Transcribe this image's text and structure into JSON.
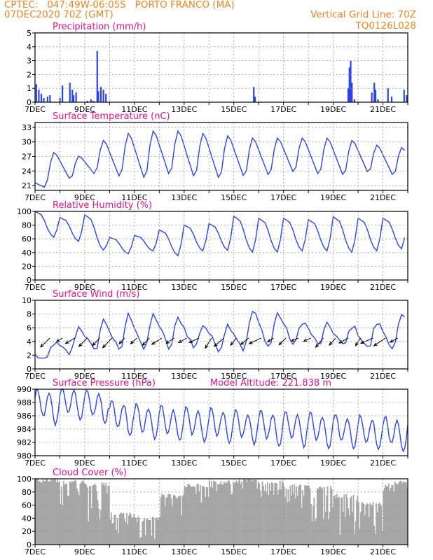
{
  "header": {
    "line1": "CPTEC:   047:49W-06:05S   PORTO FRANCO (MA)",
    "line2": "07DEC2020 70Z (GMT)",
    "grid_note": "Vertical Grid Line: 70Z",
    "code": "TQ0126L028"
  },
  "colors": {
    "header_text": "#e8862a",
    "title_text": "#e0158a",
    "line": "#2b45e8",
    "bars": "#2b45e8",
    "cloud_fill": "#a6a6a6",
    "wind_arrow": "#000000",
    "grid": "#9a9a9a"
  },
  "x_axis": {
    "start_label": "7DEC",
    "day_labels": [
      "7DEC",
      "9DEC",
      "11DEC",
      "13DEC",
      "15DEC",
      "17DEC",
      "19DEC",
      "21DEC"
    ],
    "num_days": 15
  },
  "chart_data": [
    {
      "type": "bar",
      "title": "Precipitation (mm/h)",
      "ylim": [
        0,
        5
      ],
      "yticks": [
        0,
        1,
        2,
        3,
        4,
        5
      ],
      "grid": true,
      "events": [
        {
          "day": 0.05,
          "value": 1.3
        },
        {
          "day": 0.15,
          "value": 0.9
        },
        {
          "day": 0.25,
          "value": 0.6
        },
        {
          "day": 0.35,
          "value": 0.3
        },
        {
          "day": 0.5,
          "value": 0.4
        },
        {
          "day": 0.6,
          "value": 0.5
        },
        {
          "day": 1.0,
          "value": 0.3
        },
        {
          "day": 1.1,
          "value": 1.2
        },
        {
          "day": 1.4,
          "value": 1.4
        },
        {
          "day": 1.5,
          "value": 0.9
        },
        {
          "day": 1.55,
          "value": 0.5
        },
        {
          "day": 1.65,
          "value": 0.7
        },
        {
          "day": 2.1,
          "value": 0.1
        },
        {
          "day": 2.25,
          "value": 0.2
        },
        {
          "day": 2.35,
          "value": 0.1
        },
        {
          "day": 2.5,
          "value": 3.7
        },
        {
          "day": 2.55,
          "value": 0.8
        },
        {
          "day": 2.65,
          "value": 1.1
        },
        {
          "day": 2.75,
          "value": 0.9
        },
        {
          "day": 2.85,
          "value": 0.6
        },
        {
          "day": 8.8,
          "value": 1.1
        },
        {
          "day": 8.85,
          "value": 0.4
        },
        {
          "day": 12.6,
          "value": 1.0
        },
        {
          "day": 12.65,
          "value": 2.5
        },
        {
          "day": 12.7,
          "value": 3.0
        },
        {
          "day": 12.75,
          "value": 1.4
        },
        {
          "day": 12.85,
          "value": 0.2
        },
        {
          "day": 13.55,
          "value": 0.7
        },
        {
          "day": 13.65,
          "value": 1.4
        },
        {
          "day": 13.7,
          "value": 0.9
        },
        {
          "day": 13.8,
          "value": 0.2
        },
        {
          "day": 14.2,
          "value": 1.0
        },
        {
          "day": 14.35,
          "value": 0.4
        },
        {
          "day": 14.85,
          "value": 0.9
        },
        {
          "day": 14.95,
          "value": 0.5
        }
      ]
    },
    {
      "type": "line",
      "title": "Surface Temperature (nC)",
      "ylim": [
        20,
        34
      ],
      "yticks": [
        21,
        24,
        27,
        30,
        33
      ],
      "grid": true,
      "daily_min": [
        20.5,
        21.8,
        23.0,
        22.0,
        21.5,
        22.3,
        21.8,
        21.5,
        22.0,
        22.3,
        23.0,
        22.5,
        22.3,
        23.0,
        22.5
      ],
      "daily_max": [
        28.0,
        27.2,
        30.5,
        32.0,
        32.5,
        32.5,
        32.0,
        31.5,
        31.0,
        31.0,
        31.0,
        31.0,
        30.5,
        29.5,
        29.0
      ]
    },
    {
      "type": "line",
      "title": "Relative Humidity (%)",
      "ylim": [
        0,
        100
      ],
      "yticks": [
        0,
        20,
        40,
        60,
        80,
        100
      ],
      "grid": true,
      "daily_min": [
        62,
        56,
        43,
        38,
        42,
        35,
        42,
        43,
        40,
        40,
        42,
        42,
        40,
        42,
        45
      ],
      "daily_max": [
        100,
        91,
        95,
        62,
        65,
        73,
        80,
        82,
        93,
        90,
        90,
        88,
        92,
        90,
        90
      ]
    },
    {
      "type": "line",
      "title": "Surface Wind (m/s)",
      "ylim": [
        0,
        10
      ],
      "yticks": [
        0,
        2,
        4,
        6,
        8,
        10
      ],
      "grid": true,
      "daily_min": [
        1.0,
        2.0,
        2.2,
        2.0,
        2.2,
        2.4,
        2.6,
        2.4,
        2.4,
        2.6,
        3.0,
        3.1,
        3.0,
        2.6,
        2.6
      ],
      "daily_max": [
        3.8,
        6.2,
        7.2,
        8.0,
        8.0,
        7.5,
        6.5,
        6.5,
        8.5,
        8.2,
        7.0,
        6.5,
        6.3,
        6.8,
        7.8
      ]
    },
    {
      "type": "line",
      "title": "Surface Pressure (hPa)",
      "annotation": "Model Altitude: 221.838  m",
      "ylim": [
        980,
        990
      ],
      "yticks": [
        980,
        982,
        984,
        986,
        988,
        990
      ],
      "grid": true,
      "mean_by_day": [
        987.5,
        988.0,
        987.5,
        985.8,
        985.2,
        985.0,
        984.8,
        984.6,
        984.4,
        984.2,
        984.2,
        984.0,
        983.8,
        983.6,
        983.4
      ]
    },
    {
      "type": "area",
      "title": "Cloud Cover (%)",
      "ylim": [
        0,
        100
      ],
      "yticks": [
        0,
        20,
        40,
        60,
        80,
        100
      ],
      "grid": true,
      "mean_by_day": [
        97,
        94,
        90,
        45,
        38,
        72,
        88,
        93,
        96,
        93,
        88,
        85,
        72,
        60,
        92
      ],
      "min_by_day": [
        92,
        60,
        35,
        12,
        5,
        30,
        55,
        75,
        85,
        70,
        55,
        35,
        5,
        15,
        80
      ]
    }
  ]
}
